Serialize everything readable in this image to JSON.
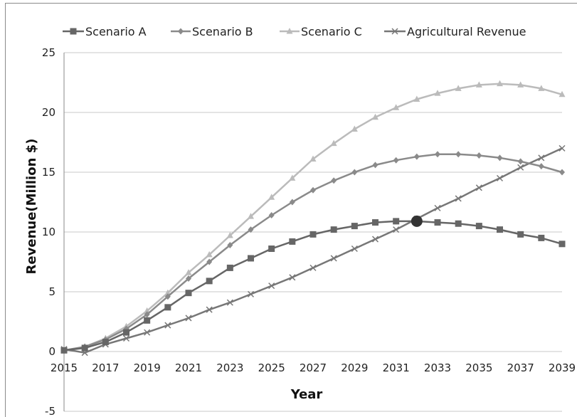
{
  "chart_data": {
    "type": "line",
    "title": "",
    "xlabel": "Year",
    "ylabel": "Revenue(Million $)",
    "xlim": [
      2015,
      2039
    ],
    "ylim": [
      -5,
      25
    ],
    "x_ticks": [
      "2015",
      "2017",
      "2019",
      "2021",
      "2023",
      "2025",
      "2027",
      "2029",
      "2031",
      "2033",
      "2035",
      "2037",
      "2039"
    ],
    "y_ticks": [
      "-5",
      "0",
      "5",
      "10",
      "15",
      "20",
      "25"
    ],
    "grid": "horizontal",
    "legend_position": "top",
    "x": [
      2015,
      2016,
      2017,
      2018,
      2019,
      2020,
      2021,
      2022,
      2023,
      2024,
      2025,
      2026,
      2027,
      2028,
      2029,
      2030,
      2031,
      2032,
      2033,
      2034,
      2035,
      2036,
      2037,
      2038,
      2039
    ],
    "series": [
      {
        "name": "Scenario A",
        "color": "#666666",
        "marker": "square",
        "values": [
          0.1,
          0.3,
          0.8,
          1.6,
          2.6,
          3.7,
          4.9,
          5.9,
          7.0,
          7.8,
          8.6,
          9.2,
          9.8,
          10.2,
          10.5,
          10.8,
          10.9,
          10.9,
          10.8,
          10.7,
          10.5,
          10.2,
          9.8,
          9.5,
          9.0
        ]
      },
      {
        "name": "Scenario B",
        "color": "#8a8a8a",
        "marker": "diamond",
        "values": [
          0.1,
          0.4,
          1.0,
          1.9,
          3.1,
          4.6,
          6.1,
          7.5,
          8.9,
          10.2,
          11.4,
          12.5,
          13.5,
          14.3,
          15.0,
          15.6,
          16.0,
          16.3,
          16.5,
          16.5,
          16.4,
          16.2,
          15.9,
          15.5,
          15.0
        ]
      },
      {
        "name": "Scenario C",
        "color": "#bbbbbb",
        "marker": "triangle",
        "values": [
          0.1,
          0.4,
          1.1,
          2.1,
          3.4,
          4.9,
          6.6,
          8.1,
          9.7,
          11.3,
          12.9,
          14.5,
          16.1,
          17.4,
          18.6,
          19.6,
          20.4,
          21.1,
          21.6,
          22.0,
          22.3,
          22.4,
          22.3,
          22.0,
          21.5
        ]
      },
      {
        "name": "Agricultural Revenue",
        "color": "#777777",
        "marker": "cross",
        "values": [
          0.2,
          -0.1,
          0.6,
          1.1,
          1.6,
          2.2,
          2.8,
          3.5,
          4.1,
          4.8,
          5.5,
          6.2,
          7.0,
          7.8,
          8.6,
          9.4,
          10.2,
          11.1,
          12.0,
          12.8,
          13.7,
          14.5,
          15.4,
          16.2,
          17.0
        ]
      }
    ],
    "highlight_point": {
      "x": 2032,
      "y": 10.9,
      "color": "#333333"
    }
  }
}
